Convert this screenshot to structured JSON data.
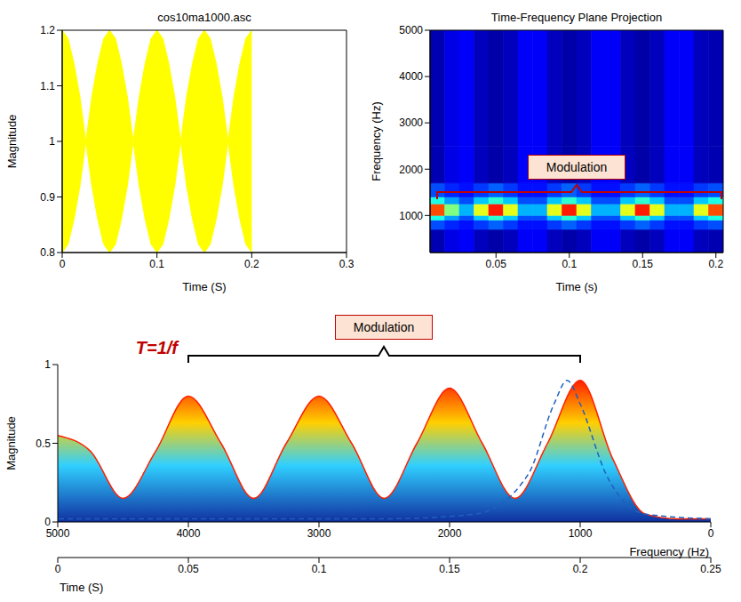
{
  "chart_data": [
    {
      "type": "area",
      "title": "cos10ma1000.asc",
      "x_label": "Time (S)",
      "y_label": "Magnitude",
      "x": [
        0,
        0.00625,
        0.0125,
        0.01875,
        0.025,
        0.03125,
        0.0375,
        0.04375,
        0.05,
        0.05625,
        0.0625,
        0.06875,
        0.075,
        0.08125,
        0.0875,
        0.09375,
        0.1,
        0.10625,
        0.1125,
        0.11875,
        0.125,
        0.13125,
        0.1375,
        0.14375,
        0.15,
        0.15625,
        0.1625,
        0.16875,
        0.175,
        0.18125,
        0.1875,
        0.19375,
        0.2
      ],
      "upper": [
        1.2,
        1.185,
        1.14,
        1.08,
        1.0,
        1.08,
        1.14,
        1.185,
        1.2,
        1.185,
        1.14,
        1.08,
        1.0,
        1.08,
        1.14,
        1.185,
        1.2,
        1.185,
        1.14,
        1.08,
        1.0,
        1.08,
        1.14,
        1.185,
        1.2,
        1.185,
        1.14,
        1.08,
        1.0,
        1.08,
        1.14,
        1.185,
        1.2
      ],
      "lower": [
        0.8,
        0.815,
        0.86,
        0.92,
        1.0,
        0.92,
        0.86,
        0.815,
        0.8,
        0.815,
        0.86,
        0.92,
        1.0,
        0.92,
        0.86,
        0.815,
        0.8,
        0.815,
        0.86,
        0.92,
        1.0,
        0.92,
        0.86,
        0.815,
        0.8,
        0.815,
        0.86,
        0.92,
        1.0,
        0.92,
        0.86,
        0.815,
        0.8
      ],
      "color": "#ffff00",
      "xlim": [
        0,
        0.3
      ],
      "xticks": [
        0,
        0.1,
        0.2,
        0.3
      ],
      "ylim": [
        0.8,
        1.2
      ],
      "yticks": [
        0.8,
        0.9,
        1,
        1.1,
        1.2
      ]
    },
    {
      "type": "heatmap",
      "title": "Time-Frequency Plane Projection",
      "x_label": "Time (s)",
      "y_label": "Frequency (Hz)",
      "x_edges": [
        0.005,
        0.015,
        0.025,
        0.035,
        0.045,
        0.055,
        0.065,
        0.075,
        0.085,
        0.095,
        0.105,
        0.115,
        0.125,
        0.135,
        0.145,
        0.155,
        0.165,
        0.175,
        0.185,
        0.195,
        0.205
      ],
      "y_edges": [
        200,
        700,
        900,
        1000,
        1250,
        1400,
        1700,
        2500,
        5000
      ],
      "cells": [
        [
          0.05,
          0.1,
          0.12,
          0.06,
          0.04,
          0.06,
          0.12,
          0.12,
          0.06,
          0.04,
          0.06,
          0.12,
          0.12,
          0.06,
          0.04,
          0.06,
          0.12,
          0.12,
          0.06,
          0.05
        ],
        [
          0.2,
          0.16,
          0.14,
          0.18,
          0.22,
          0.18,
          0.14,
          0.14,
          0.18,
          0.22,
          0.18,
          0.14,
          0.14,
          0.18,
          0.22,
          0.18,
          0.14,
          0.14,
          0.18,
          0.2
        ],
        [
          0.4,
          0.28,
          0.2,
          0.32,
          0.42,
          0.32,
          0.2,
          0.2,
          0.32,
          0.42,
          0.32,
          0.2,
          0.2,
          0.32,
          0.42,
          0.32,
          0.2,
          0.2,
          0.32,
          0.4
        ],
        [
          0.8,
          0.5,
          0.3,
          0.6,
          0.85,
          0.6,
          0.3,
          0.3,
          0.6,
          0.85,
          0.6,
          0.3,
          0.3,
          0.6,
          0.85,
          0.6,
          0.3,
          0.3,
          0.6,
          0.8
        ],
        [
          0.4,
          0.28,
          0.2,
          0.32,
          0.42,
          0.32,
          0.2,
          0.2,
          0.32,
          0.42,
          0.32,
          0.2,
          0.2,
          0.32,
          0.42,
          0.32,
          0.2,
          0.2,
          0.32,
          0.4
        ],
        [
          0.2,
          0.16,
          0.14,
          0.18,
          0.22,
          0.18,
          0.14,
          0.14,
          0.18,
          0.22,
          0.18,
          0.14,
          0.14,
          0.18,
          0.22,
          0.18,
          0.14,
          0.14,
          0.18,
          0.2
        ],
        [
          0.05,
          0.1,
          0.12,
          0.06,
          0.04,
          0.06,
          0.12,
          0.12,
          0.06,
          0.04,
          0.06,
          0.12,
          0.12,
          0.06,
          0.04,
          0.06,
          0.12,
          0.12,
          0.06,
          0.05
        ],
        [
          0.05,
          0.1,
          0.12,
          0.06,
          0.04,
          0.06,
          0.12,
          0.12,
          0.06,
          0.04,
          0.06,
          0.12,
          0.12,
          0.06,
          0.04,
          0.06,
          0.12,
          0.12,
          0.06,
          0.05
        ]
      ],
      "xlim": [
        0.005,
        0.205
      ],
      "xticks": [
        0.05,
        0.1,
        0.15,
        0.2
      ],
      "ylim": [
        200,
        5000
      ],
      "yticks": [
        1000,
        2000,
        3000,
        4000,
        5000
      ],
      "annotation": "Modulation"
    },
    {
      "type": "surface",
      "x_label": "Time (S)",
      "y_label": "Magnitude",
      "x2_label": "Frequency (Hz)",
      "x": [
        0,
        0.0125,
        0.025,
        0.0375,
        0.05,
        0.0625,
        0.075,
        0.0875,
        0.1,
        0.1125,
        0.125,
        0.1375,
        0.15,
        0.1625,
        0.175,
        0.1875,
        0.2,
        0.2125,
        0.225,
        0.2375,
        0.25
      ],
      "values": [
        0.55,
        0.45,
        0.15,
        0.45,
        0.8,
        0.5,
        0.15,
        0.5,
        0.8,
        0.5,
        0.15,
        0.5,
        0.85,
        0.5,
        0.15,
        0.5,
        0.9,
        0.4,
        0.05,
        0.02,
        0.02
      ],
      "color": "#ff2000",
      "spectrum": {
        "frequency": [
          0,
          500,
          800,
          1000,
          1100,
          1200,
          1400,
          1800,
          2500,
          5000
        ],
        "values": [
          0.02,
          0.05,
          0.3,
          0.75,
          0.9,
          0.75,
          0.3,
          0.05,
          0.02,
          0.02
        ],
        "color": "#1f5fbf",
        "line_style": "dashed"
      },
      "xlim": [
        0,
        0.25
      ],
      "xticks": [
        0,
        0.05,
        0.1,
        0.15,
        0.2,
        0.25
      ],
      "x2lim": [
        0,
        5000
      ],
      "x2ticks": [
        5000,
        4000,
        3000,
        2000,
        1000,
        0
      ],
      "ylim": [
        0,
        1
      ],
      "yticks": [
        0,
        0.5,
        1
      ],
      "annotations": [
        "T=1/f",
        "Modulation"
      ]
    }
  ]
}
